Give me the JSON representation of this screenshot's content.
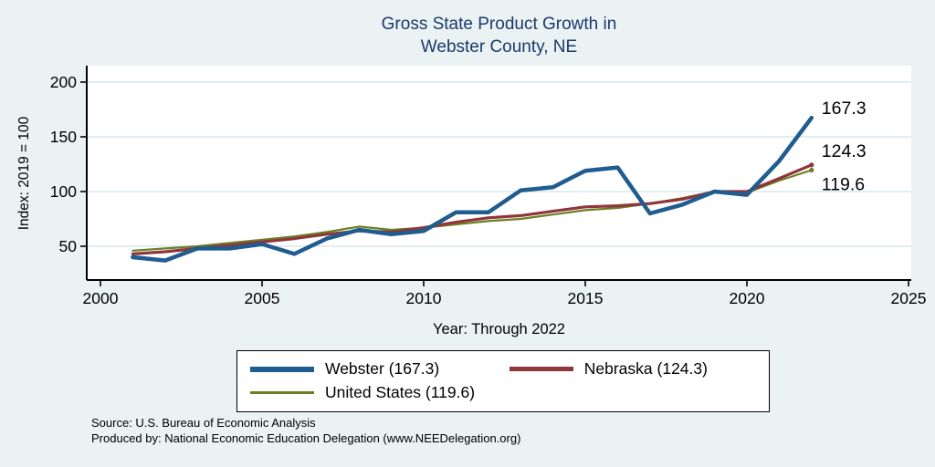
{
  "title": {
    "line1": "Gross State Product Growth in",
    "line2": "Webster County, NE"
  },
  "y_axis": {
    "label": "Index: 2019 = 100"
  },
  "x_axis": {
    "label": "Year: Through 2022"
  },
  "legend": {
    "items": [
      {
        "label": "Webster  (167.3)",
        "series": "Webster"
      },
      {
        "label": "Nebraska (124.3)",
        "series": "Nebraska"
      },
      {
        "label": "United States (119.6)",
        "series": "United States"
      }
    ]
  },
  "footnote": {
    "line1": "Source: U.S. Bureau of Economic Analysis",
    "line2": "Produced by: National Economic Education Delegation (www.NEEDelegation.org)"
  },
  "colors": {
    "webster": "#1f5c8f",
    "nebraska": "#90353b",
    "united_states": "#6b7f24",
    "background": "#eaf2f3",
    "plot_background": "#ffffff",
    "grid": "#cfe2ec",
    "title_text": "#1a3a6b"
  },
  "chart_data": {
    "type": "line",
    "title": "Gross State Product Growth in Webster County, NE",
    "xlabel": "Year: Through 2022",
    "ylabel": "Index: 2019 = 100",
    "x_ticks": [
      2000,
      2005,
      2010,
      2015,
      2020,
      2025
    ],
    "y_ticks": [
      50,
      100,
      150,
      200
    ],
    "xlim": [
      2000,
      2025
    ],
    "grid": "horizontal",
    "legend_position": "bottom",
    "x": [
      2001,
      2002,
      2003,
      2004,
      2005,
      2006,
      2007,
      2008,
      2009,
      2010,
      2011,
      2012,
      2013,
      2014,
      2015,
      2016,
      2017,
      2018,
      2019,
      2020,
      2021,
      2022
    ],
    "series": [
      {
        "name": "Webster",
        "color_key": "webster",
        "line_width": 4.5,
        "end_label": "167.3",
        "values": [
          40,
          37,
          48,
          48,
          52,
          43,
          57,
          65,
          61,
          64,
          81,
          81,
          101,
          104,
          119,
          122,
          80,
          88,
          100,
          97,
          128,
          167.3
        ]
      },
      {
        "name": "Nebraska",
        "color_key": "nebraska",
        "line_width": 3.2,
        "end_label": "124.3",
        "values": [
          43,
          45,
          48,
          51,
          54,
          57,
          61,
          64,
          63,
          67,
          72,
          76,
          78,
          82,
          86,
          87,
          89,
          93,
          100,
          100,
          112,
          124.3
        ]
      },
      {
        "name": "United States",
        "color_key": "united_states",
        "line_width": 2.2,
        "end_label": "119.6",
        "values": [
          46,
          48,
          50,
          53,
          56,
          59,
          63,
          68,
          65,
          67,
          70,
          73,
          75,
          79,
          83,
          85,
          89,
          94,
          100,
          99,
          110,
          119.6
        ]
      }
    ]
  }
}
